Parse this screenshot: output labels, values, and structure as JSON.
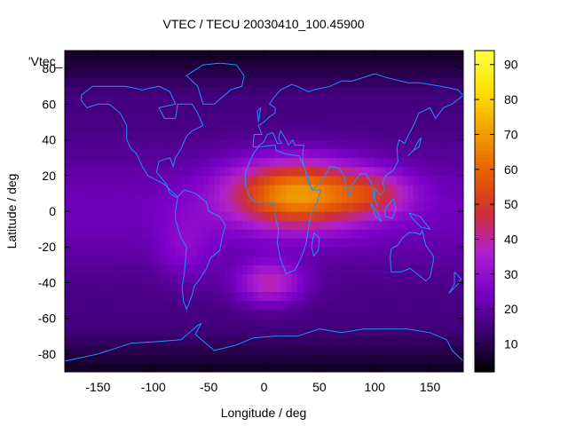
{
  "chart_data": {
    "type": "heatmap",
    "title": "VTEC / TECU 20030410_100.45900",
    "xlabel": "Longitude / deg",
    "ylabel": "Latitude / deg",
    "series_label": "'Vtec_",
    "xlim": [
      -180,
      180
    ],
    "ylim": [
      -90,
      90
    ],
    "xticks": [
      -150,
      -100,
      -50,
      0,
      50,
      100,
      150
    ],
    "yticks": [
      -80,
      -60,
      -40,
      -20,
      0,
      20,
      40,
      60,
      80
    ],
    "colorbar": {
      "min": 2,
      "max": 94,
      "ticks": [
        10,
        20,
        30,
        40,
        50,
        60,
        70,
        80,
        90
      ]
    },
    "palette": [
      "#000000",
      "#3a0070",
      "#7a00c8",
      "#b020d0",
      "#d03030",
      "#e86000",
      "#f0a000",
      "#ffe000",
      "#ffff40"
    ],
    "coastline_color": "#2090ff",
    "grid_step_deg": 5,
    "field": {
      "background": 15,
      "bands": [
        {
          "lat": 0,
          "width": 35,
          "amplitude": 8
        }
      ],
      "blobs": [
        {
          "lon": 30,
          "lat": 10,
          "sx": 60,
          "sy": 18,
          "amp": 48
        },
        {
          "lon": 5,
          "lat": -40,
          "sx": 30,
          "sy": 12,
          "amp": 22
        },
        {
          "lon": 100,
          "lat": 10,
          "sx": 35,
          "sy": 12,
          "amp": 18
        },
        {
          "lon": -70,
          "lat": -20,
          "sx": 25,
          "sy": 20,
          "amp": 8
        }
      ],
      "polar_dip": {
        "lat_above": 65,
        "value": -10
      }
    },
    "coastlines": [
      [
        [
          -165,
          65
        ],
        [
          -155,
          70
        ],
        [
          -140,
          70
        ],
        [
          -125,
          70
        ],
        [
          -110,
          68
        ],
        [
          -95,
          70
        ],
        [
          -85,
          67
        ],
        [
          -80,
          60
        ],
        [
          -95,
          58
        ],
        [
          -90,
          52
        ],
        [
          -80,
          52
        ],
        [
          -78,
          60
        ],
        [
          -65,
          60
        ],
        [
          -60,
          55
        ],
        [
          -55,
          48
        ],
        [
          -65,
          45
        ],
        [
          -70,
          42
        ],
        [
          -75,
          35
        ],
        [
          -80,
          30
        ],
        [
          -82,
          25
        ],
        [
          -85,
          30
        ],
        [
          -95,
          28
        ],
        [
          -97,
          22
        ],
        [
          -92,
          18
        ],
        [
          -88,
          15
        ],
        [
          -85,
          10
        ],
        [
          -80,
          8
        ],
        [
          -78,
          8
        ],
        [
          -90,
          15
        ],
        [
          -105,
          20
        ],
        [
          -110,
          25
        ],
        [
          -115,
          32
        ],
        [
          -120,
          35
        ],
        [
          -124,
          40
        ],
        [
          -124,
          48
        ],
        [
          -130,
          55
        ],
        [
          -140,
          60
        ],
        [
          -150,
          60
        ],
        [
          -160,
          58
        ],
        [
          -165,
          62
        ],
        [
          -165,
          65
        ]
      ],
      [
        [
          -78,
          8
        ],
        [
          -72,
          12
        ],
        [
          -62,
          10
        ],
        [
          -52,
          5
        ],
        [
          -50,
          0
        ],
        [
          -40,
          -3
        ],
        [
          -35,
          -8
        ],
        [
          -38,
          -15
        ],
        [
          -40,
          -22
        ],
        [
          -48,
          -26
        ],
        [
          -52,
          -32
        ],
        [
          -58,
          -38
        ],
        [
          -63,
          -42
        ],
        [
          -65,
          -47
        ],
        [
          -68,
          -52
        ],
        [
          -70,
          -55
        ],
        [
          -73,
          -50
        ],
        [
          -74,
          -42
        ],
        [
          -72,
          -35
        ],
        [
          -71,
          -28
        ],
        [
          -70,
          -20
        ],
        [
          -75,
          -15
        ],
        [
          -80,
          -5
        ],
        [
          -80,
          0
        ],
        [
          -78,
          8
        ]
      ],
      [
        [
          -17,
          15
        ],
        [
          -17,
          21
        ],
        [
          -13,
          28
        ],
        [
          -9,
          33
        ],
        [
          -5,
          36
        ],
        [
          10,
          37
        ],
        [
          11,
          34
        ],
        [
          20,
          32
        ],
        [
          32,
          31
        ],
        [
          34,
          28
        ],
        [
          38,
          22
        ],
        [
          43,
          12
        ],
        [
          51,
          12
        ],
        [
          48,
          5
        ],
        [
          42,
          -2
        ],
        [
          40,
          -10
        ],
        [
          38,
          -18
        ],
        [
          35,
          -24
        ],
        [
          32,
          -28
        ],
        [
          28,
          -33
        ],
        [
          20,
          -35
        ],
        [
          18,
          -32
        ],
        [
          15,
          -27
        ],
        [
          12,
          -18
        ],
        [
          13,
          -10
        ],
        [
          10,
          -2
        ],
        [
          9,
          4
        ],
        [
          5,
          5
        ],
        [
          -3,
          5
        ],
        [
          -8,
          5
        ],
        [
          -13,
          8
        ],
        [
          -17,
          15
        ]
      ],
      [
        [
          45,
          -12
        ],
        [
          50,
          -15
        ],
        [
          49,
          -22
        ],
        [
          45,
          -25
        ],
        [
          43,
          -20
        ],
        [
          45,
          -12
        ]
      ],
      [
        [
          -10,
          36
        ],
        [
          -9,
          43
        ],
        [
          -2,
          43
        ],
        [
          -5,
          48
        ],
        [
          0,
          50
        ],
        [
          5,
          53
        ],
        [
          10,
          55
        ],
        [
          10,
          58
        ],
        [
          5,
          60
        ],
        [
          8,
          63
        ],
        [
          15,
          68
        ],
        [
          25,
          71
        ],
        [
          30,
          70
        ],
        [
          40,
          67
        ],
        [
          45,
          68
        ],
        [
          60,
          70
        ],
        [
          70,
          73
        ],
        [
          80,
          73
        ],
        [
          100,
          77
        ],
        [
          110,
          75
        ],
        [
          130,
          72
        ],
        [
          140,
          72
        ],
        [
          160,
          70
        ],
        [
          175,
          68
        ],
        [
          180,
          65
        ],
        [
          170,
          60
        ],
        [
          162,
          58
        ],
        [
          155,
          52
        ],
        [
          150,
          58
        ],
        [
          140,
          55
        ],
        [
          135,
          48
        ],
        [
          130,
          42
        ],
        [
          127,
          38
        ],
        [
          122,
          40
        ],
        [
          120,
          35
        ],
        [
          121,
          28
        ],
        [
          117,
          23
        ],
        [
          110,
          20
        ],
        [
          107,
          16
        ],
        [
          109,
          12
        ],
        [
          105,
          9
        ],
        [
          100,
          13
        ],
        [
          100,
          7
        ],
        [
          103,
          2
        ],
        [
          99,
          8
        ],
        [
          97,
          16
        ],
        [
          92,
          21
        ],
        [
          87,
          21
        ],
        [
          80,
          15
        ],
        [
          77,
          8
        ],
        [
          72,
          20
        ],
        [
          68,
          24
        ],
        [
          60,
          25
        ],
        [
          57,
          22
        ],
        [
          52,
          17
        ],
        [
          44,
          12
        ],
        [
          40,
          16
        ],
        [
          35,
          28
        ],
        [
          35,
          33
        ],
        [
          36,
          37
        ],
        [
          28,
          37
        ],
        [
          26,
          40
        ],
        [
          22,
          37
        ],
        [
          20,
          40
        ],
        [
          15,
          45
        ],
        [
          13,
          41
        ],
        [
          16,
          38
        ],
        [
          12,
          38
        ],
        [
          8,
          44
        ],
        [
          3,
          43
        ],
        [
          0,
          39
        ],
        [
          -6,
          36
        ],
        [
          -10,
          36
        ]
      ],
      [
        [
          115,
          -21
        ],
        [
          114,
          -26
        ],
        [
          115,
          -34
        ],
        [
          124,
          -34
        ],
        [
          132,
          -32
        ],
        [
          138,
          -35
        ],
        [
          146,
          -39
        ],
        [
          150,
          -37
        ],
        [
          153,
          -28
        ],
        [
          153,
          -25
        ],
        [
          146,
          -19
        ],
        [
          143,
          -11
        ],
        [
          141,
          -13
        ],
        [
          136,
          -12
        ],
        [
          131,
          -12
        ],
        [
          125,
          -15
        ],
        [
          121,
          -19
        ],
        [
          115,
          -21
        ]
      ],
      [
        [
          -180,
          -84
        ],
        [
          -150,
          -80
        ],
        [
          -120,
          -74
        ],
        [
          -95,
          -73
        ],
        [
          -75,
          -72
        ],
        [
          -60,
          -64
        ],
        [
          -57,
          -63
        ],
        [
          -62,
          -69
        ],
        [
          -45,
          -78
        ],
        [
          -25,
          -75
        ],
        [
          -10,
          -71
        ],
        [
          10,
          -70
        ],
        [
          30,
          -70
        ],
        [
          50,
          -66
        ],
        [
          70,
          -68
        ],
        [
          90,
          -66
        ],
        [
          110,
          -66
        ],
        [
          130,
          -66
        ],
        [
          150,
          -68
        ],
        [
          165,
          -72
        ],
        [
          170,
          -78
        ],
        [
          180,
          -84
        ]
      ],
      [
        [
          -55,
          60
        ],
        [
          -45,
          60
        ],
        [
          -30,
          68
        ],
        [
          -20,
          70
        ],
        [
          -18,
          76
        ],
        [
          -25,
          82
        ],
        [
          -40,
          83
        ],
        [
          -55,
          82
        ],
        [
          -65,
          78
        ],
        [
          -70,
          76
        ],
        [
          -60,
          70
        ],
        [
          -55,
          60
        ]
      ],
      [
        [
          96,
          5
        ],
        [
          103,
          -1
        ],
        [
          106,
          -6
        ],
        [
          101,
          -3
        ],
        [
          96,
          5
        ]
      ],
      [
        [
          109,
          -1
        ],
        [
          110,
          2
        ],
        [
          117,
          7
        ],
        [
          119,
          1
        ],
        [
          116,
          -4
        ],
        [
          110,
          -3
        ],
        [
          109,
          -1
        ]
      ],
      [
        [
          131,
          -1
        ],
        [
          141,
          -3
        ],
        [
          150,
          -10
        ],
        [
          142,
          -9
        ],
        [
          134,
          -4
        ],
        [
          131,
          -1
        ]
      ],
      [
        [
          -5,
          50
        ],
        [
          -3,
          58
        ],
        [
          -6,
          56
        ],
        [
          -5,
          50
        ]
      ],
      [
        [
          130,
          31
        ],
        [
          135,
          34
        ],
        [
          140,
          36
        ],
        [
          142,
          41
        ],
        [
          140,
          40
        ],
        [
          135,
          34
        ],
        [
          130,
          31
        ]
      ],
      [
        [
          172,
          -34
        ],
        [
          178,
          -38
        ],
        [
          175,
          -41
        ],
        [
          167,
          -46
        ],
        [
          172,
          -41
        ],
        [
          172,
          -34
        ]
      ]
    ]
  }
}
